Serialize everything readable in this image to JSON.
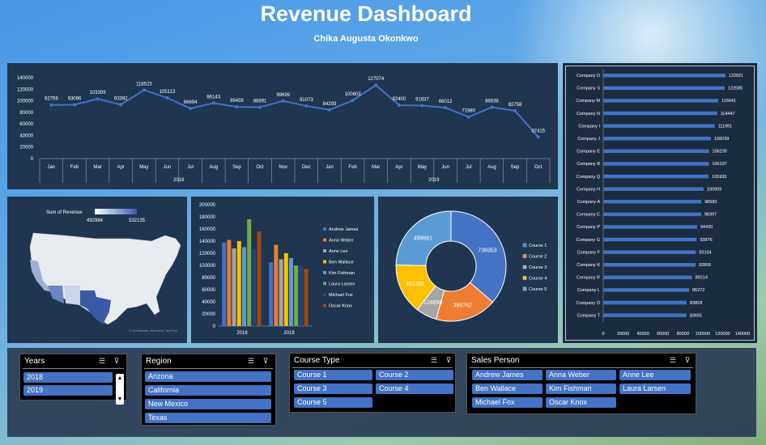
{
  "header": {
    "title": "Revenue Dashboard",
    "subtitle": "Chika Augusta Okonkwo"
  },
  "line_chart_data": {
    "type": "line",
    "years": [
      "2018",
      "2019"
    ],
    "months": [
      "Jan",
      "Feb",
      "Mar",
      "Apr",
      "May",
      "Jun",
      "Jul",
      "Aug",
      "Sep",
      "Oct",
      "Nov",
      "Dec",
      "Jan",
      "Feb",
      "Mar",
      "Apr",
      "May",
      "Jun",
      "Jul",
      "Aug",
      "Sep",
      "Oct"
    ],
    "values": [
      92759,
      93096,
      103309,
      93392,
      118523,
      105113,
      86694,
      96143,
      89459,
      88891,
      99699,
      91073,
      84293,
      100603,
      127074,
      92400,
      91637,
      88012,
      71980,
      88838,
      82758,
      37415
    ],
    "yticks": [
      "0",
      "20000",
      "40000",
      "60000",
      "80000",
      "100000",
      "120000",
      "140000"
    ],
    "ylim": [
      0,
      140000
    ],
    "color": "#4472c4"
  },
  "map": {
    "legend_title": "Sum of Revenue",
    "legend_min": "492984",
    "legend_max": "532135"
  },
  "chart_data": {
    "type": "bar",
    "categories": [
      "2018",
      "2019"
    ],
    "yticks": [
      "0",
      "20000",
      "40000",
      "60000",
      "80000",
      "100000",
      "120000",
      "140000",
      "160000",
      "180000",
      "200000"
    ],
    "ylim": [
      0,
      200000
    ],
    "series": [
      {
        "name": "Andrew James",
        "color": "#4472c4",
        "values": [
          138000,
          105000
        ]
      },
      {
        "name": "Anna Weber",
        "color": "#ed7d31",
        "values": [
          142000,
          134000
        ]
      },
      {
        "name": "Anne Lee",
        "color": "#a5a5a5",
        "values": [
          128000,
          110000
        ]
      },
      {
        "name": "Ben Wallace",
        "color": "#ffc000",
        "values": [
          140000,
          120000
        ]
      },
      {
        "name": "Kim Fishman",
        "color": "#5b9bd5",
        "values": [
          130000,
          112000
        ]
      },
      {
        "name": "Laura Larsen",
        "color": "#70ad47",
        "values": [
          176000,
          100000
        ]
      },
      {
        "name": "Michael Fox",
        "color": "#264478",
        "values": [
          127000,
          98000
        ]
      },
      {
        "name": "Oscar Knox",
        "color": "#9e480e",
        "values": [
          156000,
          94000
        ]
      }
    ]
  },
  "donut_data": {
    "type": "pie",
    "slices": [
      {
        "name": "Course 1",
        "value": 736953,
        "color": "#4472c4"
      },
      {
        "name": "Course 2",
        "value": 365762,
        "color": "#ed7d31"
      },
      {
        "name": "Course 3",
        "value": 124890,
        "color": "#a5a5a5"
      },
      {
        "name": "Course 4",
        "value": 301305,
        "color": "#ffc000"
      },
      {
        "name": "Course 5",
        "value": 499681,
        "color": "#5b9bd5"
      }
    ],
    "labels": [
      "736953",
      "365762",
      "124890",
      "301305",
      "499681"
    ]
  },
  "hbar_data": {
    "type": "bar",
    "categories": [
      "Company D",
      "Company S",
      "Company M",
      "Company N",
      "Company I",
      "Company J",
      "Company E",
      "Company B",
      "Company Q",
      "Company H",
      "Company A",
      "Company C",
      "Company P",
      "Company G",
      "Company F",
      "Company K",
      "Company R",
      "Company L",
      "Company O",
      "Company T"
    ],
    "values": [
      122821,
      122085,
      115641,
      114447,
      111991,
      108239,
      106230,
      106107,
      105933,
      100909,
      98580,
      98397,
      94430,
      93876,
      93104,
      92806,
      89214,
      86272,
      83818,
      83691
    ],
    "xticks": [
      "0",
      "20000",
      "40000",
      "60000",
      "80000",
      "100000",
      "120000",
      "140000"
    ],
    "xlim": [
      0,
      140000
    ],
    "color": "#4472c4"
  },
  "slicers": {
    "years": {
      "title": "Years",
      "items": [
        "2018",
        "2019"
      ]
    },
    "region": {
      "title": "Region",
      "items": [
        "Arizona",
        "California",
        "New Mexico",
        "Texas"
      ]
    },
    "course": {
      "title": "Course Type",
      "items": [
        "Course 1",
        "Course 2",
        "Course 3",
        "Course 4",
        "Course 5"
      ]
    },
    "sales": {
      "title": "Sales Person",
      "items": [
        "Andrew James",
        "Anna Weber",
        "Anne Lee",
        "Ben Wallace",
        "Kim Fishman",
        "Laura Larsen",
        "Michael Fox",
        "Oscar Knox"
      ]
    }
  }
}
